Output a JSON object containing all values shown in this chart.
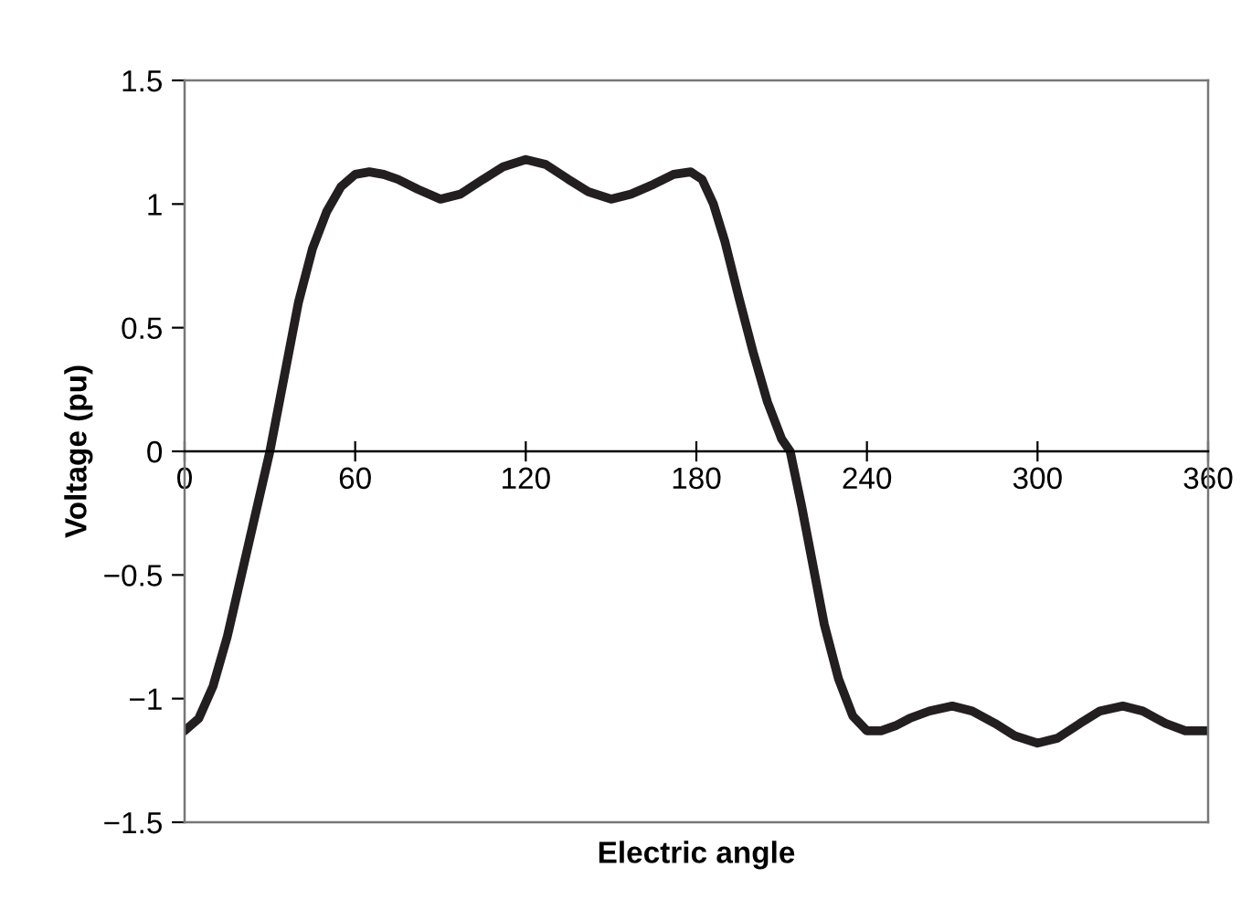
{
  "chart_data": {
    "type": "line",
    "xlabel": "Electric angle",
    "ylabel": "Voltage (pu)",
    "x": [
      0,
      5,
      10,
      15,
      20,
      25,
      30,
      35,
      40,
      45,
      50,
      55,
      60,
      65,
      70,
      75,
      82,
      90,
      97,
      105,
      112,
      120,
      127,
      135,
      142,
      150,
      157,
      165,
      172,
      178,
      182,
      186,
      190,
      195,
      200,
      205,
      210,
      213,
      217,
      220,
      225,
      230,
      235,
      240,
      245,
      250,
      255,
      262,
      270,
      277,
      285,
      292,
      300,
      307,
      315,
      322,
      330,
      337,
      345,
      352,
      360
    ],
    "series": [
      {
        "color": "#231f20",
        "values": [
          -1.13,
          -1.08,
          -0.95,
          -0.75,
          -0.5,
          -0.25,
          0.0,
          0.3,
          0.6,
          0.82,
          0.97,
          1.07,
          1.12,
          1.13,
          1.12,
          1.1,
          1.06,
          1.02,
          1.04,
          1.1,
          1.15,
          1.18,
          1.16,
          1.1,
          1.05,
          1.02,
          1.04,
          1.08,
          1.12,
          1.13,
          1.1,
          1.0,
          0.85,
          0.62,
          0.4,
          0.2,
          0.05,
          0.0,
          -0.22,
          -0.4,
          -0.7,
          -0.92,
          -1.07,
          -1.13,
          -1.13,
          -1.11,
          -1.08,
          -1.05,
          -1.03,
          -1.05,
          -1.1,
          -1.15,
          -1.18,
          -1.16,
          -1.1,
          -1.05,
          -1.03,
          -1.05,
          -1.1,
          -1.13,
          -1.13
        ]
      }
    ],
    "xlim": [
      0,
      360
    ],
    "ylim": [
      -1.5,
      1.5
    ],
    "xticks": [
      0,
      60,
      120,
      180,
      240,
      300,
      360
    ],
    "yticks": [
      {
        "value": -1.5,
        "label": "−1.5"
      },
      {
        "value": -1,
        "label": "−1"
      },
      {
        "value": -0.5,
        "label": "−0.5"
      },
      0,
      0.5,
      1,
      1.5
    ],
    "grid": false,
    "legend": false,
    "marker": "none",
    "line_style": "solid"
  }
}
